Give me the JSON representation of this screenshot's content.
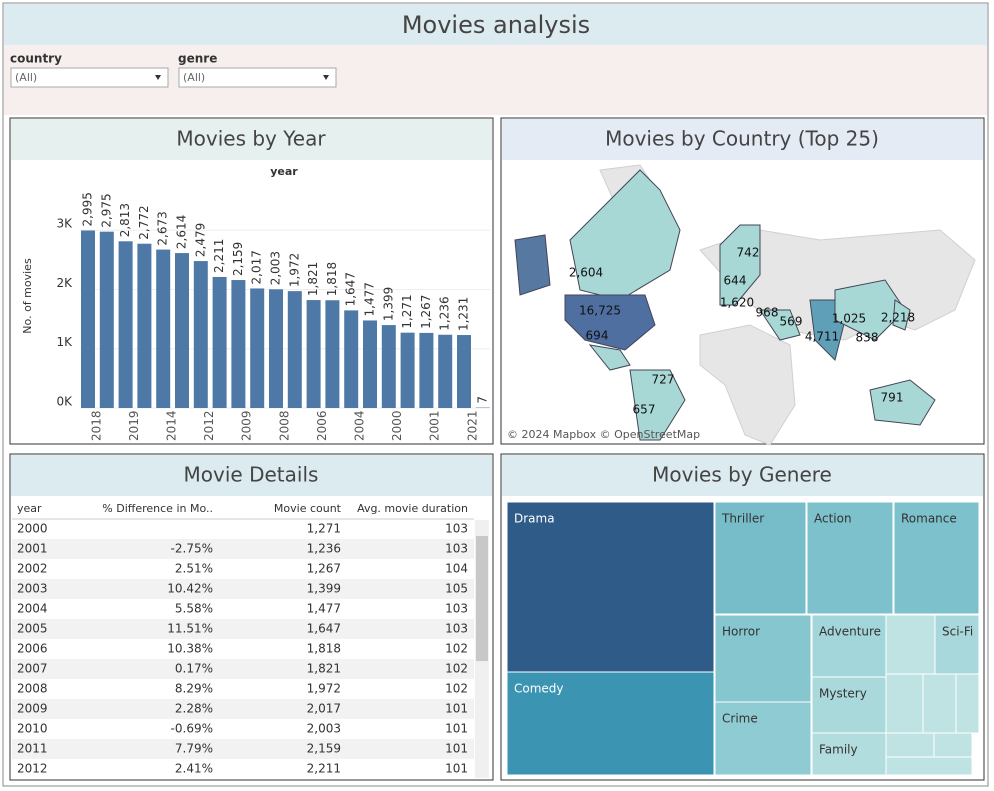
{
  "header": {
    "title": "Movies analysis"
  },
  "filters": [
    {
      "label": "country",
      "value": "(All)"
    },
    {
      "label": "genre",
      "value": "(All)"
    }
  ],
  "chart_data": {
    "type": "bar",
    "title": "Movies by Year",
    "subtitle": "year",
    "y_label": "No. of movies",
    "color": "#4e79a7",
    "categories": [
      null,
      "2018",
      null,
      "2019",
      null,
      "2014",
      null,
      "2012",
      null,
      "2009",
      null,
      "2008",
      null,
      "2006",
      null,
      "2004",
      null,
      "2000",
      null,
      "2001",
      null,
      "2021"
    ],
    "values": [
      2995,
      2975,
      2813,
      2772,
      2673,
      2614,
      2479,
      2211,
      2159,
      2017,
      2003,
      1972,
      1821,
      1818,
      1647,
      1477,
      1399,
      1271,
      1267,
      1236,
      1231,
      7
    ],
    "value_labels": [
      "2,995",
      "2,975",
      "2,813",
      "2,772",
      "2,673",
      "2,614",
      "2,479",
      "2,211",
      "2,159",
      "2,017",
      "2,003",
      "1,972",
      "1,821",
      "1,818",
      "1,647",
      "1,477",
      "1,399",
      "1,271",
      "1,267",
      "1,236",
      "1,231",
      "7"
    ],
    "ylim": [
      0,
      4100
    ],
    "yticks": [
      {
        "value": 0,
        "label": "0K"
      },
      {
        "value": 1000,
        "label": "1K"
      },
      {
        "value": 2000,
        "label": "2K"
      },
      {
        "value": 3000,
        "label": "3K"
      }
    ],
    "grid": true
  },
  "map": {
    "title": "Movies by Country (Top 25)",
    "attribution": "© 2024 Mapbox © OpenStreetMap",
    "labels": [
      "2,604",
      "16,725",
      "694",
      "727",
      "657",
      "742",
      "644",
      "1,620",
      "968",
      "569",
      "4,711",
      "1,025",
      "838",
      "2,218",
      "791"
    ]
  },
  "table": {
    "title": "Movie Details",
    "columns": [
      "year",
      "% Difference in Mo..",
      "Movie count",
      "Avg. movie duration"
    ],
    "rows": [
      [
        "2000",
        null,
        "1,271",
        "103"
      ],
      [
        "2001",
        "-2.75%",
        "1,236",
        "103"
      ],
      [
        "2002",
        "2.51%",
        "1,267",
        "104"
      ],
      [
        "2003",
        "10.42%",
        "1,399",
        "105"
      ],
      [
        "2004",
        "5.58%",
        "1,477",
        "103"
      ],
      [
        "2005",
        "11.51%",
        "1,647",
        "103"
      ],
      [
        "2006",
        "10.38%",
        "1,818",
        "102"
      ],
      [
        "2007",
        "0.17%",
        "1,821",
        "102"
      ],
      [
        "2008",
        "8.29%",
        "1,972",
        "102"
      ],
      [
        "2009",
        "2.28%",
        "2,017",
        "101"
      ],
      [
        "2010",
        "-0.69%",
        "2,003",
        "101"
      ],
      [
        "2011",
        "7.79%",
        "2,159",
        "101"
      ],
      [
        "2012",
        "2.41%",
        "2,211",
        "101"
      ]
    ]
  },
  "treemap": {
    "title": "Movies by Genere",
    "tiles": [
      "Drama",
      "Comedy",
      "Thriller",
      "Action",
      "Romance",
      "Horror",
      "Adventure",
      "Sci-Fi",
      "Mystery",
      "Crime",
      "Family"
    ]
  }
}
